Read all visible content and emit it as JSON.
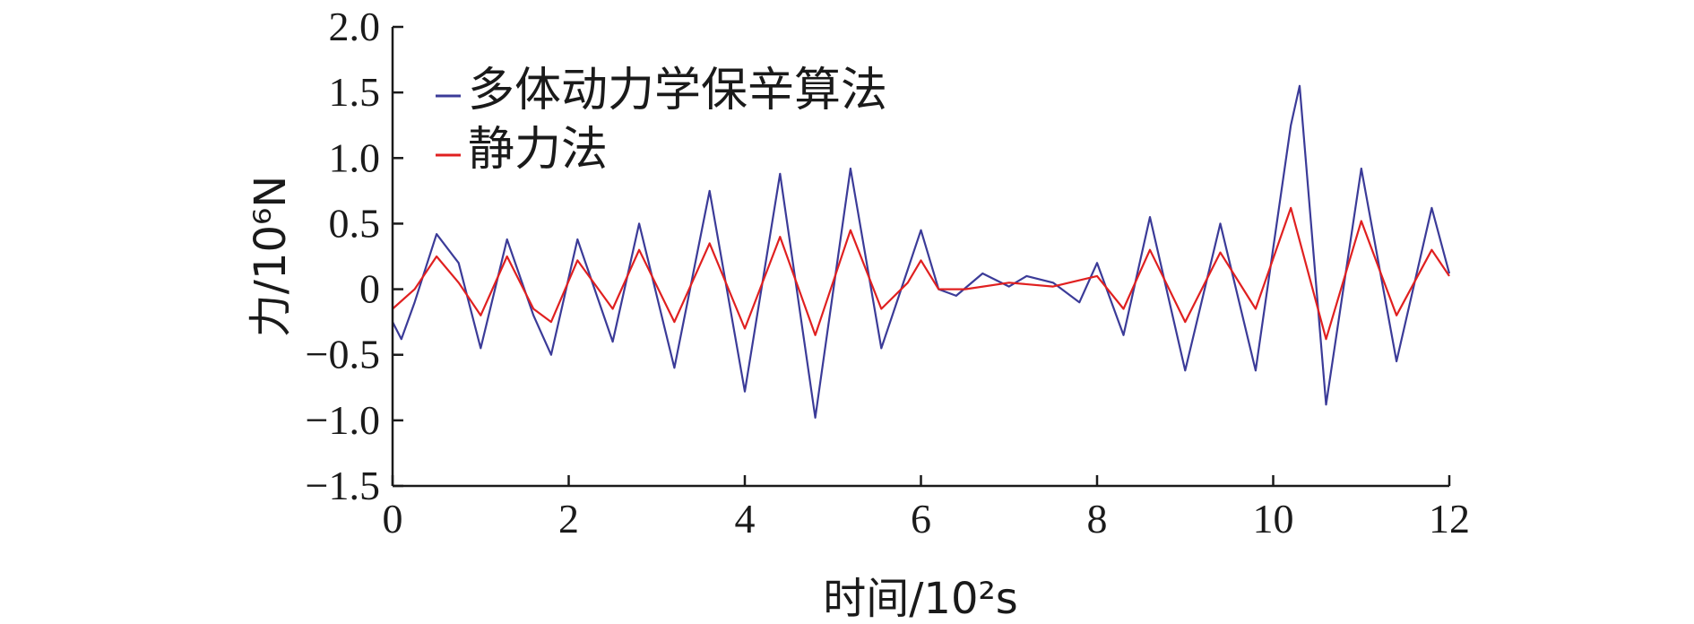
{
  "chart_data": {
    "type": "line",
    "title": "",
    "xlabel": "时间/10²s",
    "ylabel": "力/10⁶N",
    "xlim": [
      0,
      12
    ],
    "ylim": [
      -1.5,
      2.0
    ],
    "xticks": [
      "0",
      "2",
      "4",
      "6",
      "8",
      "10",
      "12"
    ],
    "yticks": [
      "2.0",
      "1.5",
      "1.0",
      "0.5",
      "0",
      "−0.5",
      "−1.0",
      "−1.5"
    ],
    "grid": false,
    "legend_position": "top-left",
    "series": [
      {
        "name": "多体动力学保辛算法",
        "color": "#3b3b98",
        "x": [
          0,
          0.1,
          0.25,
          0.5,
          0.75,
          1.0,
          1.3,
          1.6,
          1.8,
          2.1,
          2.5,
          2.8,
          3.2,
          3.6,
          4.0,
          4.4,
          4.8,
          5.2,
          5.55,
          5.85,
          6.0,
          6.2,
          6.4,
          6.7,
          7.0,
          7.2,
          7.5,
          7.8,
          8.0,
          8.3,
          8.6,
          9.0,
          9.4,
          9.8,
          10.2,
          10.3,
          10.6,
          11.0,
          11.4,
          11.8,
          12.0
        ],
        "y": [
          -0.25,
          -0.38,
          -0.1,
          0.42,
          0.2,
          -0.45,
          0.38,
          -0.2,
          -0.5,
          0.38,
          -0.4,
          0.5,
          -0.6,
          0.75,
          -0.78,
          0.88,
          -0.98,
          0.92,
          -0.45,
          0.15,
          0.45,
          0.0,
          -0.05,
          0.12,
          0.02,
          0.1,
          0.05,
          -0.1,
          0.2,
          -0.35,
          0.55,
          -0.62,
          0.5,
          -0.62,
          1.25,
          1.55,
          -0.88,
          0.92,
          -0.55,
          0.62,
          0.12
        ]
      },
      {
        "name": "静力法",
        "color": "#e02020",
        "x": [
          0,
          0.25,
          0.5,
          0.75,
          1.0,
          1.3,
          1.6,
          1.8,
          2.1,
          2.5,
          2.8,
          3.2,
          3.6,
          4.0,
          4.4,
          4.8,
          5.2,
          5.55,
          5.85,
          6.0,
          6.2,
          6.5,
          7.0,
          7.5,
          8.0,
          8.3,
          8.6,
          9.0,
          9.4,
          9.8,
          10.2,
          10.6,
          11.0,
          11.4,
          11.8,
          12.0
        ],
        "y": [
          -0.15,
          0.0,
          0.25,
          0.05,
          -0.2,
          0.25,
          -0.15,
          -0.25,
          0.22,
          -0.15,
          0.3,
          -0.25,
          0.35,
          -0.3,
          0.4,
          -0.35,
          0.45,
          -0.15,
          0.05,
          0.22,
          0.0,
          0.0,
          0.05,
          0.02,
          0.1,
          -0.15,
          0.3,
          -0.25,
          0.28,
          -0.15,
          0.62,
          -0.38,
          0.52,
          -0.2,
          0.3,
          0.1
        ]
      }
    ]
  }
}
